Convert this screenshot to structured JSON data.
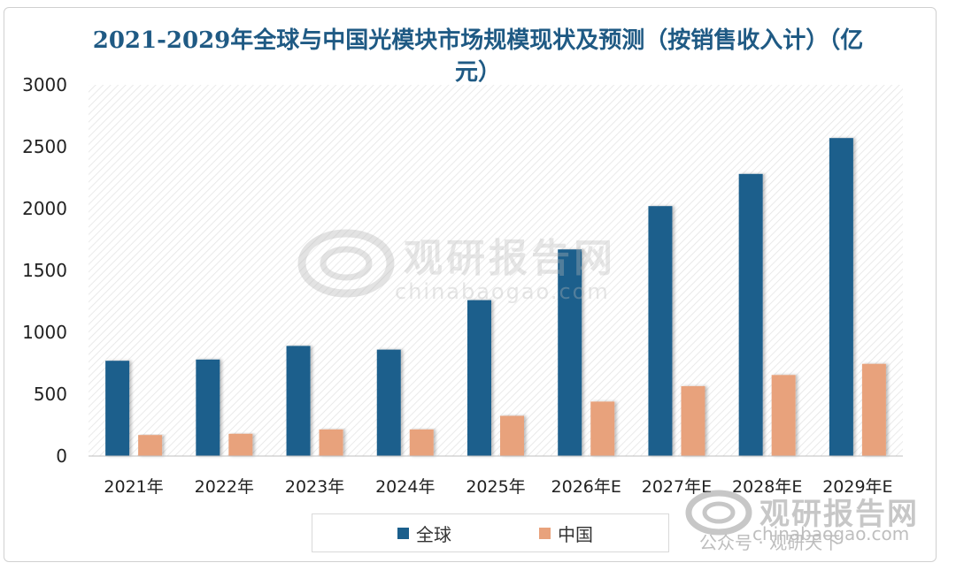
{
  "chart_data": {
    "type": "bar",
    "title": "2021-2029年全球与中国光模块市场规模现状及预测（按销售收入计）（亿元）",
    "categories": [
      "2021年",
      "2022年",
      "2023年",
      "2024年",
      "2025年",
      "2026年E",
      "2027年E",
      "2028年E",
      "2029年E"
    ],
    "series": [
      {
        "name": "全球",
        "color": "#1b5f8c",
        "values": [
          770,
          780,
          890,
          860,
          1260,
          1670,
          2020,
          2280,
          2570
        ]
      },
      {
        "name": "中国",
        "color": "#e8a27c",
        "values": [
          170,
          180,
          215,
          215,
          325,
          440,
          565,
          655,
          745
        ]
      }
    ],
    "ylim": [
      0,
      3000
    ],
    "yticks": [
      0,
      500,
      1000,
      1500,
      2000,
      2500,
      3000
    ],
    "grid": false,
    "legend_position": "bottom"
  },
  "watermark": {
    "brand": "观研报告网",
    "url": "chinabaogao.com",
    "account": "公众号 · 观研天下"
  },
  "colors": {
    "title": "#1f5a84",
    "plot_hatch": "#dcdcdc",
    "axis_text": "#222222"
  }
}
